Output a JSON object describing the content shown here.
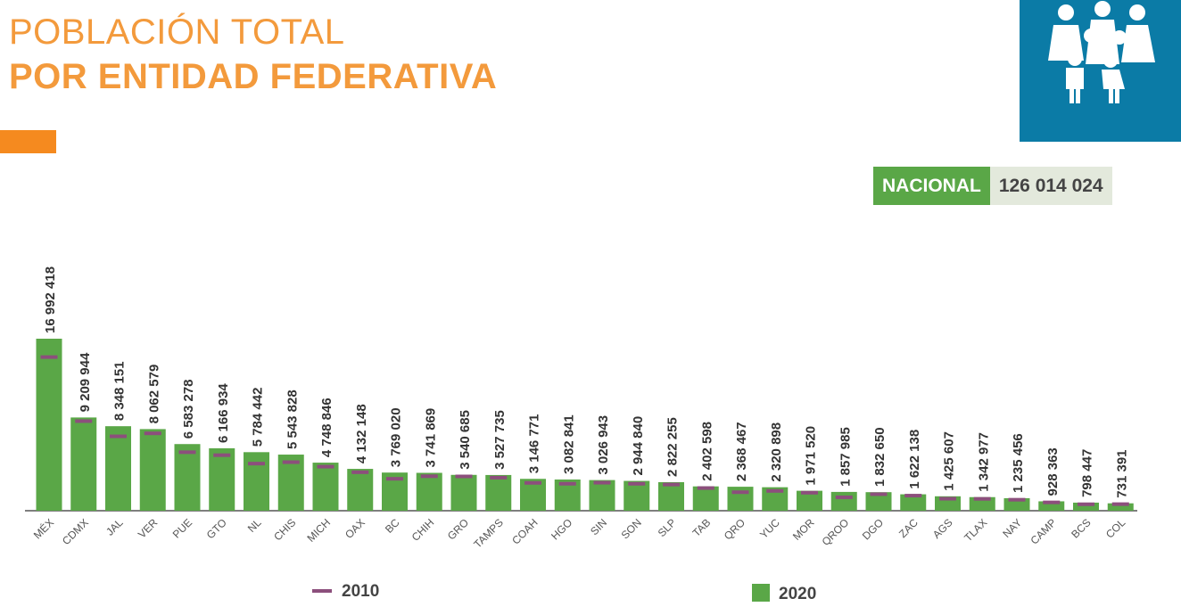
{
  "header": {
    "title_line1": "POBLACIÓN TOTAL",
    "title_line2": "POR ENTIDAD FEDERATIVA"
  },
  "national": {
    "label": "NACIONAL",
    "value": "126 014 024"
  },
  "colors": {
    "bar": "#5aa747",
    "marker": "#8c4f7c",
    "title": "#f39a3c",
    "logo_bg": "#0b7ba6"
  },
  "chart_data": {
    "type": "bar",
    "title": "POBLACIÓN TOTAL POR ENTIDAD FEDERATIVA",
    "categories": [
      "MÉX",
      "CDMX",
      "JAL",
      "VER",
      "PUE",
      "GTO",
      "NL",
      "CHIS",
      "MICH",
      "OAX",
      "BC",
      "CHIH",
      "GRO",
      "TAMPS",
      "COAH",
      "HGO",
      "SIN",
      "SON",
      "SLP",
      "TAB",
      "QRO",
      "YUC",
      "MOR",
      "QROO",
      "DGO",
      "ZAC",
      "AGS",
      "TLAX",
      "NAY",
      "CAMP",
      "BCS",
      "COL"
    ],
    "labels_2020": [
      "16 992 418",
      "9 209 944",
      "8 348 151",
      "8 062 579",
      "6 583 278",
      "6 166 934",
      "5 784 442",
      "5 543 828",
      "4 748 846",
      "4 132 148",
      "3 769 020",
      "3 741 869",
      "3 540 685",
      "3 527 735",
      "3 146 771",
      "3 082 841",
      "3 026 943",
      "2 944 840",
      "2 822 255",
      "2 402 598",
      "2 368 467",
      "2 320 898",
      "1 971 520",
      "1 857 985",
      "1 832 650",
      "1 622 138",
      "1 425 607",
      "1 342 977",
      "1 235 456",
      "928 363",
      "798 447",
      "731 391"
    ],
    "series": [
      {
        "name": "2020",
        "type": "bar",
        "values": [
          16992418,
          9209944,
          8348151,
          8062579,
          6583278,
          6166934,
          5784442,
          5543828,
          4748846,
          4132148,
          3769020,
          3741869,
          3540685,
          3527735,
          3146771,
          3082841,
          3026943,
          2944840,
          2822255,
          2402598,
          2368467,
          2320898,
          1971520,
          1857985,
          1832650,
          1622138,
          1425607,
          1342977,
          1235456,
          928363,
          798447,
          731391
        ]
      },
      {
        "name": "2010",
        "type": "marker",
        "values": [
          15175862,
          8851080,
          7350682,
          7643194,
          5779829,
          5486372,
          4653458,
          4796580,
          4351037,
          3801962,
          3155070,
          3406465,
          3388768,
          3268554,
          2748391,
          2665018,
          2767761,
          2662480,
          2585518,
          2238603,
          1827937,
          1955577,
          1777227,
          1325578,
          1632934,
          1490668,
          1184996,
          1169936,
          1084979,
          822441,
          637026,
          650555
        ]
      }
    ],
    "legend": [
      "2010",
      "2020"
    ],
    "legend_position": "bottom",
    "ylim": [
      0,
      17000000
    ],
    "grid": false
  }
}
